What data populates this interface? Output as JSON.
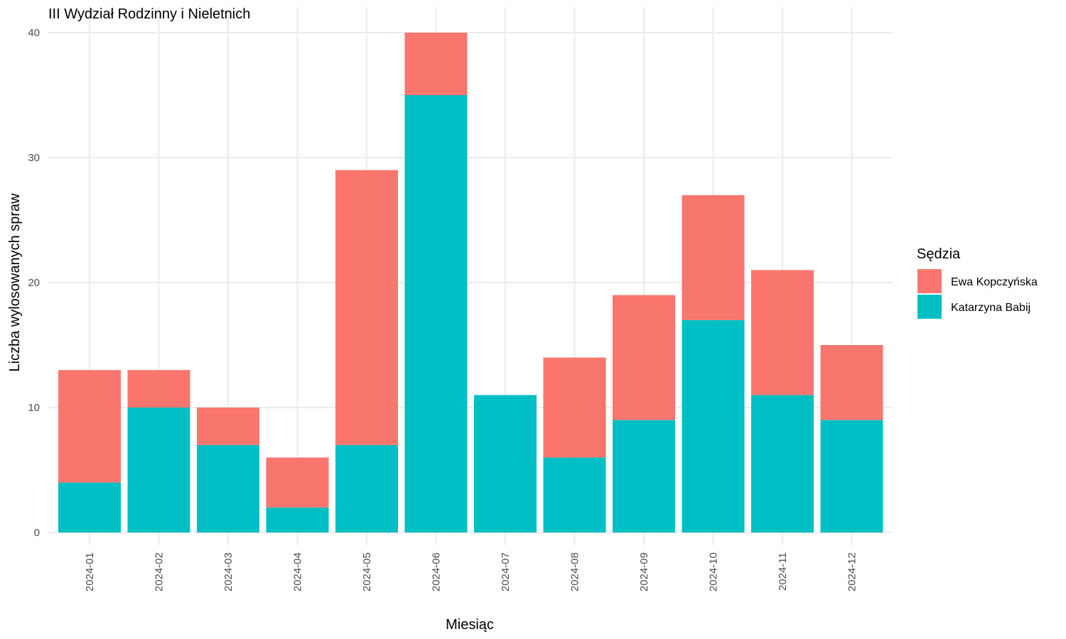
{
  "chart_data": {
    "type": "bar",
    "stacked": true,
    "title": "III Wydział Rodzinny i Nieletnich",
    "xlabel": "Miesiąc",
    "ylabel": "Liczba wylosowanych spraw",
    "categories": [
      "2024-01",
      "2024-02",
      "2024-03",
      "2024-04",
      "2024-05",
      "2024-06",
      "2024-07",
      "2024-08",
      "2024-09",
      "2024-10",
      "2024-11",
      "2024-12"
    ],
    "series": [
      {
        "name": "Katarzyna Babij",
        "color": "#00BFC4",
        "values": [
          4,
          10,
          7,
          2,
          7,
          35,
          11,
          6,
          9,
          17,
          11,
          9
        ]
      },
      {
        "name": "Ewa Kopczyńska",
        "color": "#F8766D",
        "values": [
          9,
          3,
          3,
          4,
          22,
          5,
          0,
          8,
          10,
          10,
          10,
          6
        ]
      }
    ],
    "ylim": [
      0,
      40
    ],
    "yticks": [
      0,
      10,
      20,
      30,
      40
    ],
    "grid": true,
    "legend": {
      "title": "Sędzia",
      "position": "right",
      "entries": [
        {
          "name": "Ewa Kopczyńska",
          "color": "#F8766D"
        },
        {
          "name": "Katarzyna Babij",
          "color": "#00BFC4"
        }
      ]
    }
  }
}
